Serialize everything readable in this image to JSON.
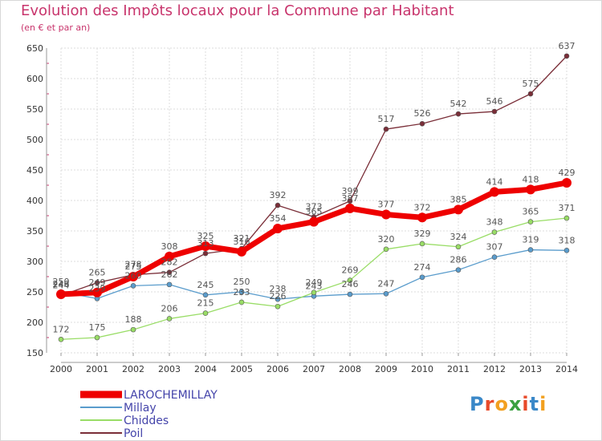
{
  "title": "Evolution des Impôts locaux pour la Commune par Habitant",
  "subtitle": "(en € et par an)",
  "logo": "Proxiti",
  "chart_data": {
    "type": "line",
    "title": "Evolution des Impôts locaux pour la Commune par Habitant",
    "subtitle": "(en € et par an)",
    "x": [
      "2000",
      "2001",
      "2002",
      "2003",
      "2004",
      "2005",
      "2006",
      "2007",
      "2008",
      "2009",
      "2010",
      "2011",
      "2012",
      "2013",
      "2014"
    ],
    "ylim": [
      150,
      650
    ],
    "yticks": [
      150,
      200,
      250,
      300,
      350,
      400,
      450,
      500,
      550,
      600,
      650
    ],
    "grid": true,
    "legend_position": "bottom-left",
    "series": [
      {
        "name": "LAROCHEMILLAY",
        "color": "#ee0000",
        "values": [
          246,
          249,
          275,
          308,
          325,
          316,
          354,
          365,
          387,
          377,
          372,
          385,
          414,
          418,
          429
        ]
      },
      {
        "name": "Millay",
        "color": "#5a9ccc",
        "values": [
          250,
          239,
          260,
          262,
          245,
          250,
          238,
          243,
          246,
          247,
          274,
          286,
          307,
          319,
          318
        ]
      },
      {
        "name": "Chiddes",
        "color": "#99dd66",
        "values": [
          172,
          175,
          188,
          206,
          215,
          233,
          226,
          249,
          269,
          320,
          329,
          324,
          348,
          365,
          371
        ]
      },
      {
        "name": "Poil",
        "color": "#7a2e38",
        "values": [
          244,
          265,
          278,
          282,
          313,
          321,
          392,
          373,
          399,
          517,
          526,
          542,
          546,
          575,
          637
        ]
      }
    ],
    "labels": {
      "LAROCHEMILLAY": [
        "246",
        "249",
        "275",
        "308",
        "325",
        "316",
        "354",
        "365",
        "387",
        "377",
        "372",
        "385",
        "414",
        "418",
        "429"
      ],
      "Millay": [
        "250",
        "239",
        "260",
        "262",
        "245",
        "250",
        "238",
        "243",
        "246",
        "247",
        "274",
        "286",
        "307",
        "319",
        "318"
      ],
      "Chiddes": [
        "172",
        "175",
        "188",
        "206",
        "215",
        "233",
        "226",
        "249",
        "269",
        "320",
        "329",
        "324",
        "348",
        "365",
        "371"
      ],
      "Poil": [
        "244",
        "265",
        "278",
        "282",
        "313",
        "321",
        "392",
        "373",
        "399",
        "517",
        "526",
        "542",
        "546",
        "575",
        "637"
      ]
    }
  }
}
